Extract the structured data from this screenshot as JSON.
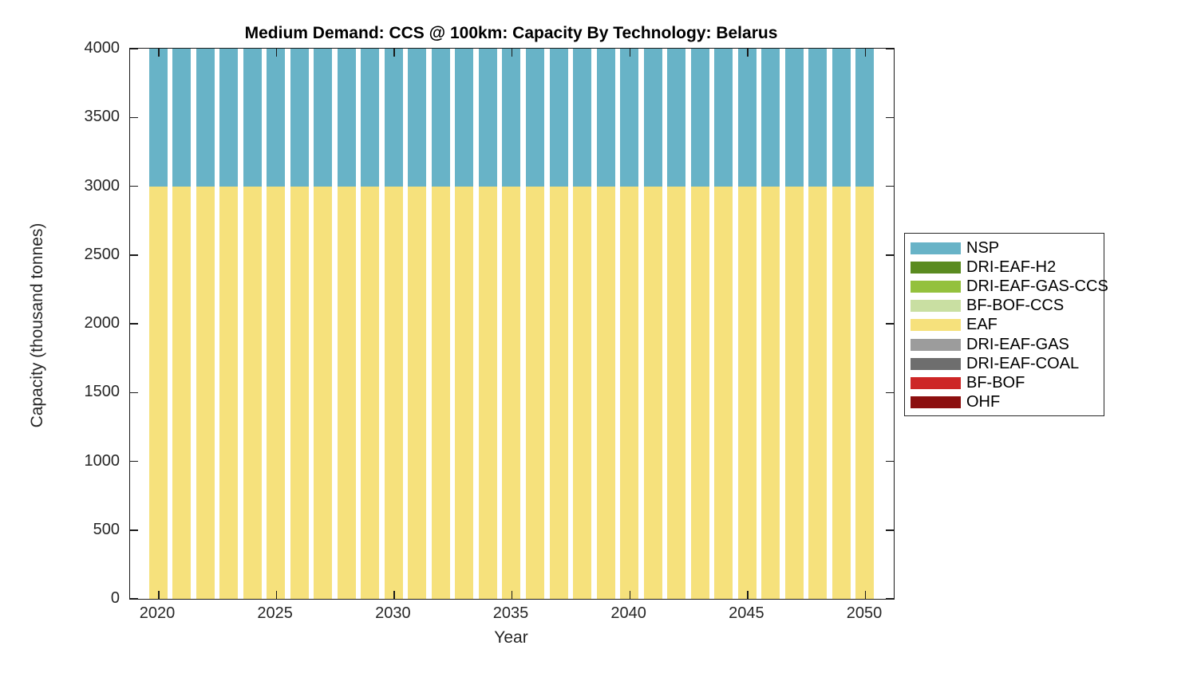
{
  "chart_data": {
    "type": "bar",
    "stacked": true,
    "title": "Medium Demand: CCS @ 100km: Capacity By Technology: Belarus",
    "xlabel": "Year",
    "ylabel": "Capacity (thousand tonnes)",
    "ylim": [
      0,
      4000
    ],
    "yticks": [
      0,
      500,
      1000,
      1500,
      2000,
      2500,
      3000,
      3500,
      4000
    ],
    "xticks": [
      2020,
      2025,
      2030,
      2035,
      2040,
      2045,
      2050
    ],
    "grid": false,
    "x": [
      2020,
      2021,
      2022,
      2023,
      2024,
      2025,
      2026,
      2027,
      2028,
      2029,
      2030,
      2031,
      2032,
      2033,
      2034,
      2035,
      2036,
      2037,
      2038,
      2039,
      2040,
      2041,
      2042,
      2043,
      2044,
      2045,
      2046,
      2047,
      2048,
      2049,
      2050
    ],
    "series": [
      {
        "name": "EAF",
        "color": "#f6e17c",
        "values": [
          3000,
          3000,
          3000,
          3000,
          3000,
          3000,
          3000,
          3000,
          3000,
          3000,
          3000,
          3000,
          3000,
          3000,
          3000,
          3000,
          3000,
          3000,
          3000,
          3000,
          3000,
          3000,
          3000,
          3000,
          3000,
          3000,
          3000,
          3000,
          3000,
          3000,
          3000
        ]
      },
      {
        "name": "NSP",
        "color": "#68b3c7",
        "values": [
          1000,
          1000,
          1000,
          1000,
          1000,
          1000,
          1000,
          1000,
          1000,
          1000,
          1000,
          1000,
          1000,
          1000,
          1000,
          1000,
          1000,
          1000,
          1000,
          1000,
          1000,
          1000,
          1000,
          1000,
          1000,
          1000,
          1000,
          1000,
          1000,
          1000,
          1000
        ]
      }
    ],
    "legend": {
      "position": "right-outside",
      "entries": [
        {
          "label": "NSP",
          "color": "#68b3c7"
        },
        {
          "label": "DRI-EAF-H2",
          "color": "#5a8b20"
        },
        {
          "label": "DRI-EAF-GAS-CCS",
          "color": "#94c13d"
        },
        {
          "label": "BF-BOF-CCS",
          "color": "#c9dfa2"
        },
        {
          "label": "EAF",
          "color": "#f6e17c"
        },
        {
          "label": "DRI-EAF-GAS",
          "color": "#9c9c9c"
        },
        {
          "label": "DRI-EAF-COAL",
          "color": "#6e6e6e"
        },
        {
          "label": "BF-BOF",
          "color": "#cd2626"
        },
        {
          "label": "OHF",
          "color": "#8c0f0f"
        }
      ]
    }
  }
}
